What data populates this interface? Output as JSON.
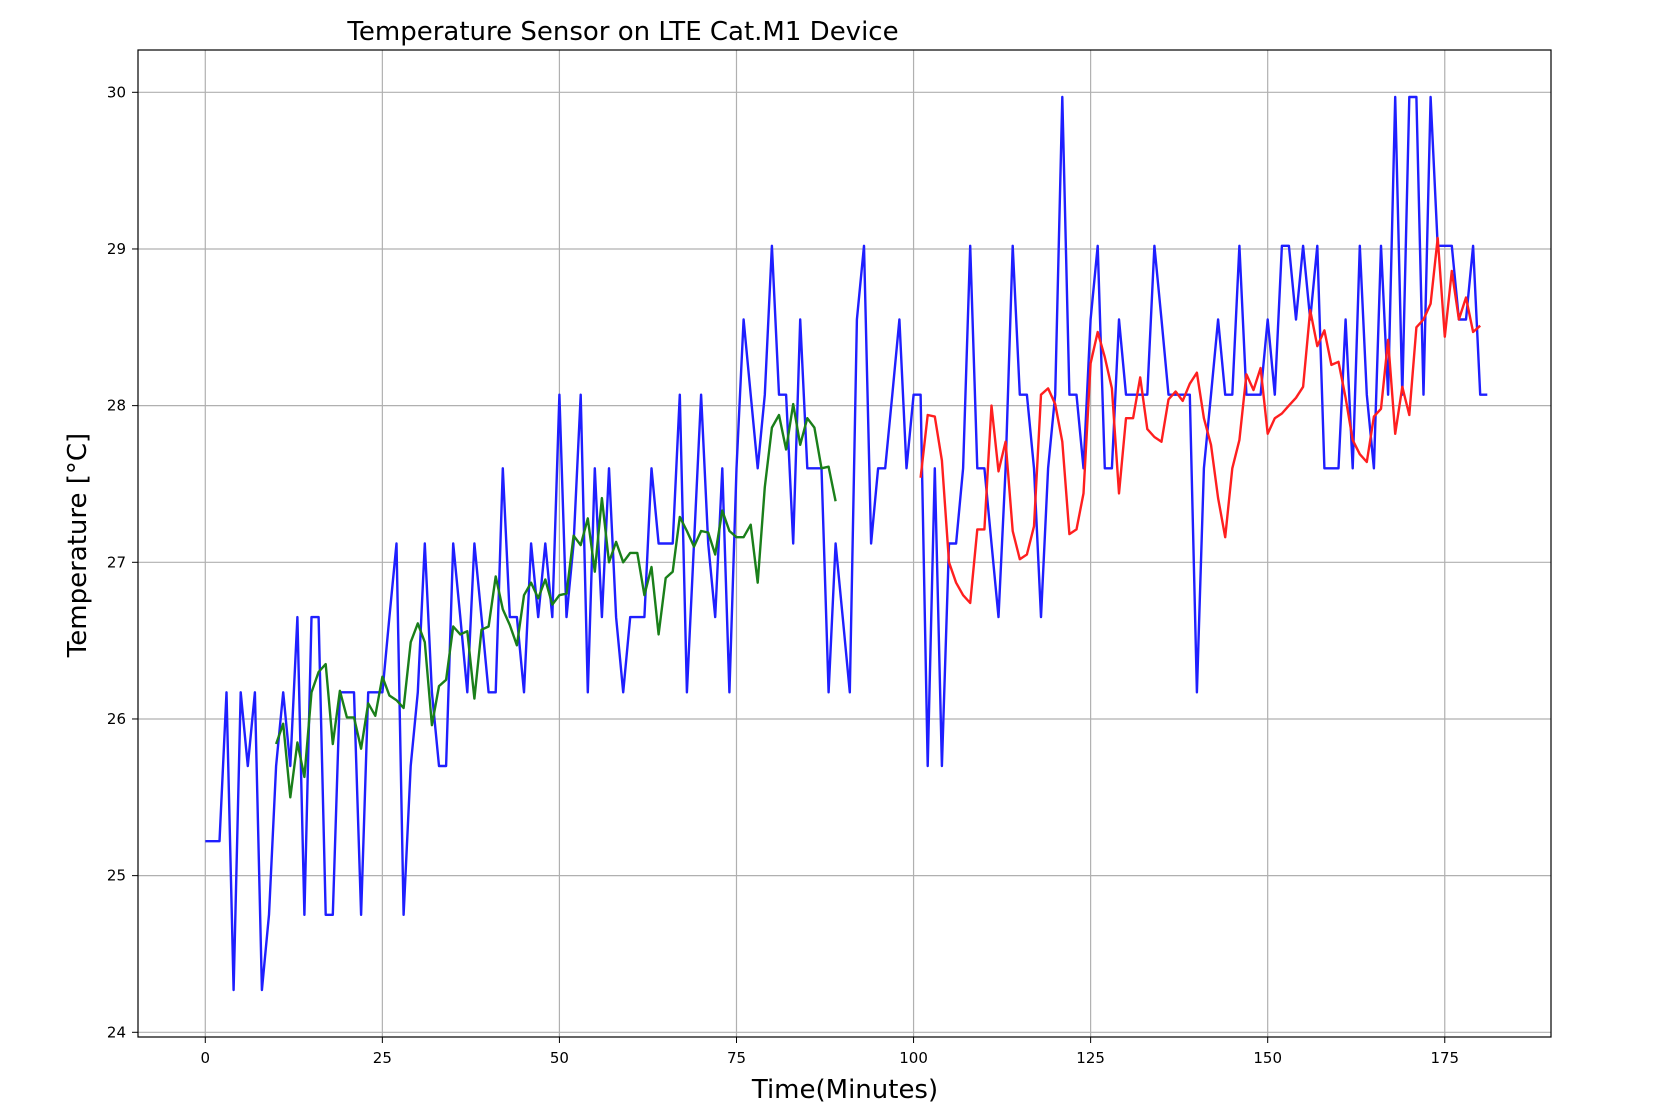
{
  "chart_data": {
    "type": "line",
    "title": "Temperature Sensor on LTE Cat.M1 Device",
    "xlabel": "Time(Minutes)",
    "ylabel": "Temperature [°C]",
    "xlim": [
      -9.5,
      190
    ],
    "ylim": [
      23.97,
      30.27
    ],
    "xticks": [
      0,
      25,
      50,
      75,
      100,
      125,
      150,
      175
    ],
    "yticks": [
      24,
      25,
      26,
      27,
      28,
      29,
      30
    ],
    "grid": true,
    "legend": "none",
    "series": [
      {
        "color": "#1f1fff",
        "x": [
          0,
          1,
          2,
          3,
          4,
          5,
          6,
          7,
          8,
          9,
          10,
          11,
          12,
          13,
          14,
          15,
          16,
          17,
          18,
          19,
          20,
          21,
          22,
          23,
          24,
          25,
          26,
          27,
          28,
          29,
          30,
          31,
          32,
          33,
          34,
          35,
          36,
          37,
          38,
          39,
          40,
          41,
          42,
          43,
          44,
          45,
          46,
          47,
          48,
          49,
          50,
          51,
          52,
          53,
          54,
          55,
          56,
          57,
          58,
          59,
          60,
          61,
          62,
          63,
          64,
          65,
          66,
          67,
          68,
          69,
          70,
          71,
          72,
          73,
          74,
          75,
          76,
          77,
          78,
          79,
          80,
          81,
          82,
          83,
          84,
          85,
          86,
          87,
          88,
          89,
          90,
          91,
          92,
          93,
          94,
          95,
          96,
          97,
          98,
          99,
          100,
          101,
          102,
          103,
          104,
          105,
          106,
          107,
          108,
          109,
          110,
          111,
          112,
          113,
          114,
          115,
          116,
          117,
          118,
          119,
          120,
          121,
          122,
          123,
          124,
          125,
          126,
          127,
          128,
          129,
          130,
          131,
          132,
          133,
          134,
          135,
          136,
          137,
          138,
          139,
          140,
          141,
          142,
          143,
          144,
          145,
          146,
          147,
          148,
          149,
          150,
          151,
          152,
          153,
          154,
          155,
          156,
          157,
          158,
          159,
          160,
          161,
          162,
          163,
          164,
          165,
          166,
          167,
          168,
          169,
          170,
          171,
          172,
          173,
          174,
          175,
          176,
          177,
          178,
          179,
          180,
          181
        ],
        "y": [
          25.22,
          25.22,
          25.22,
          26.17,
          24.27,
          26.17,
          25.7,
          26.17,
          24.27,
          24.75,
          25.7,
          26.17,
          25.7,
          26.65,
          24.75,
          26.65,
          26.65,
          24.75,
          24.75,
          26.17,
          26.17,
          26.17,
          24.75,
          26.17,
          26.17,
          26.17,
          26.65,
          27.12,
          24.75,
          25.7,
          26.17,
          27.12,
          26.17,
          25.7,
          25.7,
          27.12,
          26.65,
          26.17,
          27.12,
          26.65,
          26.17,
          26.17,
          27.6,
          26.65,
          26.65,
          26.17,
          27.12,
          26.65,
          27.12,
          26.65,
          28.07,
          26.65,
          27.12,
          28.07,
          26.17,
          27.6,
          26.65,
          27.6,
          26.65,
          26.17,
          26.65,
          26.65,
          26.65,
          27.6,
          27.12,
          27.12,
          27.12,
          28.07,
          26.17,
          27.12,
          28.07,
          27.12,
          26.65,
          27.6,
          26.17,
          27.6,
          28.55,
          28.07,
          27.6,
          28.07,
          29.02,
          28.07,
          28.07,
          27.12,
          28.55,
          27.6,
          27.6,
          27.6,
          26.17,
          27.12,
          26.65,
          26.17,
          28.55,
          29.02,
          27.12,
          27.6,
          27.6,
          28.07,
          28.55,
          27.6,
          28.07,
          28.07,
          25.7,
          27.6,
          25.7,
          27.12,
          27.12,
          27.6,
          29.02,
          27.6,
          27.6,
          27.12,
          26.65,
          27.6,
          29.02,
          28.07,
          28.07,
          27.6,
          26.65,
          27.6,
          28.07,
          29.97,
          28.07,
          28.07,
          27.6,
          28.55,
          29.02,
          27.6,
          27.6,
          28.55,
          28.07,
          28.07,
          28.07,
          28.07,
          29.02,
          28.55,
          28.07,
          28.07,
          28.07,
          28.07,
          26.17,
          27.6,
          28.07,
          28.55,
          28.07,
          28.07,
          29.02,
          28.07,
          28.07,
          28.07,
          28.55,
          28.07,
          29.02,
          29.02,
          28.55,
          29.02,
          28.55,
          29.02,
          27.6,
          27.6,
          27.6,
          28.55,
          27.6,
          29.02,
          28.07,
          27.6,
          29.02,
          28.07,
          29.97,
          28.07,
          29.97,
          29.97,
          28.07,
          29.97,
          29.02,
          29.02,
          29.02,
          28.55,
          28.55,
          29.02,
          28.07,
          28.07
        ]
      },
      {
        "color": "#1a7f1a",
        "x": [
          10,
          11,
          12,
          13,
          14,
          15,
          16,
          17,
          18,
          19,
          20,
          21,
          22,
          23,
          24,
          25,
          26,
          27,
          28,
          29,
          30,
          31,
          32,
          33,
          34,
          35,
          36,
          37,
          38,
          39,
          40,
          41,
          42,
          43,
          44,
          45,
          46,
          47,
          48,
          49,
          50,
          51,
          52,
          53,
          54,
          55,
          56,
          57,
          58,
          59,
          60,
          61,
          62,
          63,
          64,
          65,
          66,
          67,
          68,
          69,
          70,
          71,
          72,
          73,
          74,
          75,
          76,
          77,
          78,
          79,
          80,
          81,
          82,
          83,
          84,
          85,
          86,
          87,
          88,
          89
        ],
        "y": [
          25.84,
          25.97,
          25.5,
          25.85,
          25.63,
          26.17,
          26.3,
          26.35,
          25.84,
          26.18,
          26.01,
          26.01,
          25.81,
          26.1,
          26.02,
          26.27,
          26.15,
          26.12,
          26.07,
          26.49,
          26.61,
          26.49,
          25.96,
          26.21,
          26.25,
          26.59,
          26.54,
          26.56,
          26.13,
          26.57,
          26.59,
          26.91,
          26.7,
          26.6,
          26.47,
          26.79,
          26.87,
          26.77,
          26.89,
          26.73,
          26.79,
          26.8,
          27.17,
          27.11,
          27.28,
          26.94,
          27.41,
          27.0,
          27.13,
          27.0,
          27.06,
          27.06,
          26.79,
          26.97,
          26.54,
          26.9,
          26.94,
          27.29,
          27.2,
          27.1,
          27.2,
          27.19,
          27.05,
          27.33,
          27.2,
          27.16,
          27.16,
          27.24,
          26.87,
          27.48,
          27.86,
          27.94,
          27.72,
          28.01,
          27.75,
          27.92,
          27.86,
          27.6,
          27.61,
          27.39
        ]
      },
      {
        "color": "#ff1f1f",
        "x": [
          101,
          102,
          103,
          104,
          105,
          106,
          107,
          108,
          109,
          110,
          111,
          112,
          113,
          114,
          115,
          116,
          117,
          118,
          119,
          120,
          121,
          122,
          123,
          124,
          125,
          126,
          127,
          128,
          129,
          130,
          131,
          132,
          133,
          134,
          135,
          136,
          137,
          138,
          139,
          140,
          141,
          142,
          143,
          144,
          145,
          146,
          147,
          148,
          149,
          150,
          151,
          152,
          153,
          154,
          155,
          156,
          157,
          158,
          159,
          160,
          161,
          162,
          163,
          164,
          165,
          166,
          167,
          168,
          169,
          170,
          171,
          172,
          173,
          174,
          175,
          176,
          177,
          178,
          179,
          180
        ],
        "y": [
          27.54,
          27.94,
          27.93,
          27.65,
          27.0,
          26.87,
          26.79,
          26.74,
          27.21,
          27.21,
          28.0,
          27.58,
          27.77,
          27.2,
          27.02,
          27.05,
          27.23,
          28.07,
          28.11,
          28.01,
          27.77,
          27.18,
          27.21,
          27.44,
          28.27,
          28.47,
          28.31,
          28.11,
          27.44,
          27.92,
          27.92,
          28.18,
          27.85,
          27.8,
          27.77,
          28.04,
          28.09,
          28.03,
          28.14,
          28.21,
          27.92,
          27.75,
          27.41,
          27.16,
          27.6,
          27.78,
          28.2,
          28.1,
          28.24,
          27.82,
          27.92,
          27.95,
          28.0,
          28.05,
          28.12,
          28.61,
          28.38,
          28.48,
          28.26,
          28.28,
          28.05,
          27.78,
          27.69,
          27.64,
          27.93,
          27.98,
          28.42,
          27.82,
          28.12,
          27.94,
          28.5,
          28.55,
          28.65,
          29.07,
          28.44,
          28.86,
          28.55,
          28.69,
          28.47,
          28.51
        ]
      }
    ]
  }
}
